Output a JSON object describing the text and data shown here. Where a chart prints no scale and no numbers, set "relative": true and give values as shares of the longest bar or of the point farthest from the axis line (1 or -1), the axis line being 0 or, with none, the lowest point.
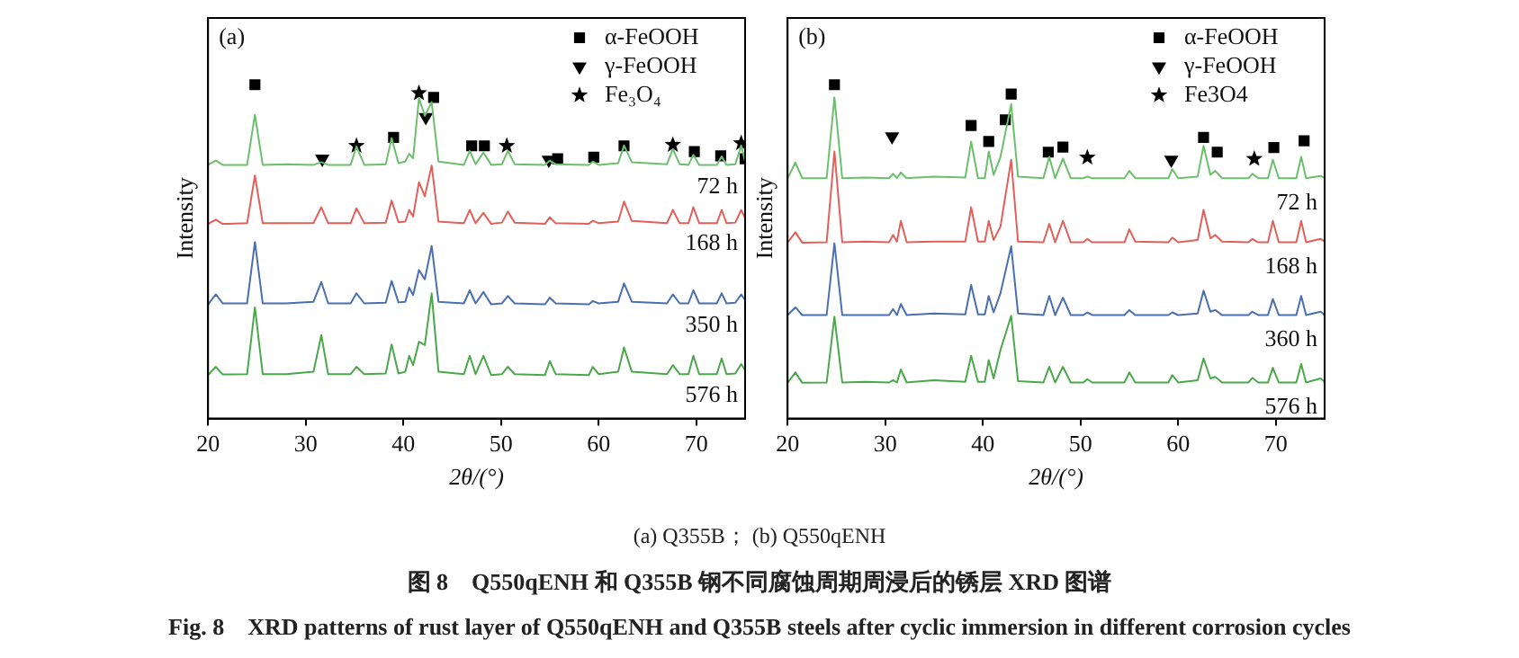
{
  "chart_data": [
    {
      "type": "line",
      "title": "(a)",
      "xlabel": "2θ/(°)",
      "ylabel": "Intensity",
      "relative": true,
      "xlim": [
        20,
        75
      ],
      "xticks": [
        20,
        30,
        40,
        50,
        60,
        70
      ],
      "tick_labels": "x",
      "grid": false,
      "legend": "top right",
      "x": [
        20,
        20.8,
        21.5,
        24,
        24.8,
        25.6,
        28,
        30.8,
        31.6,
        32.3,
        34.6,
        35.2,
        36,
        38.2,
        38.8,
        39.5,
        40.2,
        40.6,
        41.0,
        41.6,
        42.2,
        42.9,
        43.6,
        46.2,
        46.8,
        47.4,
        48.2,
        49,
        50.1,
        50.7,
        51.4,
        54.5,
        55.0,
        55.6,
        59,
        59.4,
        60,
        62,
        62.6,
        63.4,
        67,
        67.6,
        68.3,
        69.2,
        69.7,
        70.3,
        72.1,
        72.6,
        73.1,
        74,
        74.6,
        75
      ],
      "series": [
        {
          "name": "72 h",
          "color": "#6cbf6c",
          "values": [
            0.76,
            0.773,
            0.76,
            0.76,
            0.91,
            0.76,
            0.762,
            0.76,
            0.768,
            0.76,
            0.76,
            0.815,
            0.76,
            0.762,
            0.84,
            0.765,
            0.77,
            0.793,
            0.78,
            0.96,
            0.907,
            0.948,
            0.77,
            0.76,
            0.802,
            0.762,
            0.797,
            0.76,
            0.762,
            0.802,
            0.762,
            0.76,
            0.773,
            0.762,
            0.76,
            0.77,
            0.76,
            0.765,
            0.818,
            0.768,
            0.762,
            0.807,
            0.762,
            0.76,
            0.79,
            0.76,
            0.76,
            0.785,
            0.76,
            0.762,
            0.818,
            0.77
          ]
        },
        {
          "name": "168 h",
          "color": "#e0605a",
          "values": [
            0.583,
            0.596,
            0.583,
            0.585,
            0.728,
            0.585,
            0.585,
            0.586,
            0.633,
            0.585,
            0.585,
            0.63,
            0.585,
            0.587,
            0.653,
            0.588,
            0.59,
            0.625,
            0.605,
            0.708,
            0.666,
            0.758,
            0.59,
            0.585,
            0.625,
            0.585,
            0.616,
            0.583,
            0.587,
            0.62,
            0.587,
            0.583,
            0.603,
            0.585,
            0.583,
            0.593,
            0.585,
            0.59,
            0.65,
            0.592,
            0.585,
            0.625,
            0.585,
            0.585,
            0.633,
            0.585,
            0.585,
            0.625,
            0.585,
            0.587,
            0.625,
            0.6
          ]
        },
        {
          "name": "350 h",
          "color": "#4a6fb0",
          "values": [
            0.342,
            0.372,
            0.345,
            0.345,
            0.529,
            0.345,
            0.345,
            0.35,
            0.409,
            0.345,
            0.345,
            0.375,
            0.345,
            0.347,
            0.412,
            0.348,
            0.35,
            0.392,
            0.37,
            0.445,
            0.417,
            0.517,
            0.35,
            0.345,
            0.384,
            0.345,
            0.379,
            0.342,
            0.345,
            0.367,
            0.345,
            0.342,
            0.362,
            0.345,
            0.342,
            0.352,
            0.345,
            0.35,
            0.405,
            0.35,
            0.345,
            0.372,
            0.345,
            0.345,
            0.384,
            0.345,
            0.345,
            0.375,
            0.345,
            0.347,
            0.372,
            0.355
          ]
        },
        {
          "name": "576 h",
          "color": "#4aa84a",
          "values": [
            0.13,
            0.155,
            0.132,
            0.133,
            0.333,
            0.133,
            0.133,
            0.14,
            0.25,
            0.133,
            0.133,
            0.155,
            0.133,
            0.135,
            0.222,
            0.135,
            0.14,
            0.188,
            0.16,
            0.23,
            0.22,
            0.375,
            0.14,
            0.133,
            0.188,
            0.133,
            0.188,
            0.13,
            0.133,
            0.155,
            0.133,
            0.13,
            0.172,
            0.133,
            0.13,
            0.155,
            0.133,
            0.14,
            0.213,
            0.14,
            0.133,
            0.16,
            0.133,
            0.133,
            0.188,
            0.133,
            0.133,
            0.18,
            0.133,
            0.135,
            0.163,
            0.145
          ]
        },
        {
          "name": "α-FeOOH",
          "type": "scatter",
          "marker": "square",
          "color": "#000000",
          "x": [
            24.8,
            39,
            43.1,
            47,
            48.3,
            55.8,
            59.5,
            62.6,
            69.8,
            72.5,
            75
          ],
          "values": [
            1.0,
            0.842,
            0.962,
            0.817,
            0.817,
            0.778,
            0.783,
            0.817,
            0.8,
            0.787,
            0.778
          ]
        },
        {
          "name": "γ-FeOOH",
          "type": "scatter",
          "marker": "triangle",
          "color": "#000000",
          "x": [
            31.7,
            42.3,
            54.9
          ],
          "values": [
            0.778,
            0.903,
            0.775
          ]
        },
        {
          "name": "Fe₃O₄",
          "type": "scatter",
          "marker": "star",
          "color": "#000000",
          "x": [
            35.2,
            41.6,
            50.6,
            67.6,
            74.6
          ],
          "values": [
            0.817,
            0.975,
            0.817,
            0.82,
            0.825
          ]
        }
      ]
    },
    {
      "type": "line",
      "title": "(b)",
      "xlabel": "2θ/(°)",
      "ylabel": "Intensity",
      "relative": true,
      "xlim": [
        20,
        75
      ],
      "xticks": [
        20,
        30,
        40,
        50,
        60,
        70
      ],
      "tick_labels": "x",
      "grid": false,
      "legend": "top right",
      "x": [
        20,
        20.8,
        21.5,
        24,
        24.8,
        25.6,
        28,
        30.4,
        30.8,
        31.2,
        31.6,
        32.2,
        35,
        38.2,
        38.8,
        39.5,
        40.2,
        40.6,
        41.1,
        41.8,
        42.9,
        43.6,
        46.2,
        46.8,
        47.4,
        48.2,
        49,
        50.3,
        50.7,
        51.2,
        54.5,
        55,
        55.6,
        59,
        59.4,
        60,
        62,
        62.6,
        63.3,
        63.8,
        64.5,
        67.2,
        67.6,
        68.2,
        69.2,
        69.7,
        70.3,
        72.1,
        72.6,
        73.1,
        74.6,
        75
      ],
      "series": [
        {
          "name": "72 h",
          "color": "#6cbf6c",
          "values": [
            0.72,
            0.767,
            0.72,
            0.72,
            0.962,
            0.72,
            0.722,
            0.72,
            0.733,
            0.72,
            0.737,
            0.72,
            0.725,
            0.722,
            0.829,
            0.72,
            0.72,
            0.8,
            0.73,
            0.783,
            0.942,
            0.725,
            0.72,
            0.784,
            0.72,
            0.779,
            0.72,
            0.72,
            0.725,
            0.72,
            0.72,
            0.742,
            0.72,
            0.72,
            0.747,
            0.72,
            0.725,
            0.817,
            0.73,
            0.742,
            0.72,
            0.72,
            0.733,
            0.72,
            0.72,
            0.775,
            0.72,
            0.72,
            0.784,
            0.72,
            0.727,
            0.72
          ]
        },
        {
          "name": "168 h",
          "color": "#e0605a",
          "values": [
            0.527,
            0.558,
            0.527,
            0.528,
            0.8,
            0.528,
            0.53,
            0.528,
            0.55,
            0.53,
            0.592,
            0.528,
            0.53,
            0.53,
            0.633,
            0.53,
            0.53,
            0.592,
            0.535,
            0.575,
            0.775,
            0.53,
            0.528,
            0.583,
            0.528,
            0.592,
            0.528,
            0.528,
            0.538,
            0.528,
            0.528,
            0.567,
            0.53,
            0.528,
            0.542,
            0.528,
            0.535,
            0.625,
            0.54,
            0.55,
            0.53,
            0.528,
            0.538,
            0.528,
            0.528,
            0.592,
            0.528,
            0.528,
            0.592,
            0.528,
            0.538,
            0.53
          ]
        },
        {
          "name": "360 h",
          "color": "#4a6fb0",
          "values": [
            0.31,
            0.333,
            0.31,
            0.31,
            0.525,
            0.31,
            0.31,
            0.31,
            0.328,
            0.31,
            0.343,
            0.31,
            0.315,
            0.312,
            0.4,
            0.312,
            0.312,
            0.367,
            0.318,
            0.375,
            0.516,
            0.315,
            0.31,
            0.367,
            0.31,
            0.362,
            0.31,
            0.31,
            0.318,
            0.31,
            0.31,
            0.325,
            0.31,
            0.31,
            0.318,
            0.31,
            0.315,
            0.383,
            0.32,
            0.325,
            0.31,
            0.31,
            0.32,
            0.31,
            0.31,
            0.358,
            0.31,
            0.31,
            0.367,
            0.31,
            0.32,
            0.31
          ]
        },
        {
          "name": "576 h",
          "color": "#4aa84a",
          "values": [
            0.107,
            0.138,
            0.107,
            0.108,
            0.305,
            0.108,
            0.11,
            0.108,
            0.115,
            0.108,
            0.147,
            0.108,
            0.115,
            0.11,
            0.188,
            0.11,
            0.11,
            0.175,
            0.12,
            0.205,
            0.308,
            0.112,
            0.108,
            0.155,
            0.108,
            0.155,
            0.108,
            0.108,
            0.118,
            0.108,
            0.108,
            0.138,
            0.108,
            0.108,
            0.13,
            0.108,
            0.115,
            0.18,
            0.12,
            0.125,
            0.108,
            0.108,
            0.122,
            0.108,
            0.108,
            0.152,
            0.108,
            0.108,
            0.163,
            0.108,
            0.12,
            0.11
          ]
        },
        {
          "name": "α-FeOOH",
          "type": "scatter",
          "marker": "square",
          "color": "#000000",
          "x": [
            24.8,
            38.8,
            40.6,
            42.3,
            42.9,
            46.7,
            48.2,
            62.6,
            64,
            69.8,
            72.9
          ],
          "values": [
            1.0,
            0.878,
            0.83,
            0.895,
            0.972,
            0.798,
            0.813,
            0.842,
            0.798,
            0.812,
            0.832
          ]
        },
        {
          "name": "γ-FeOOH",
          "type": "scatter",
          "marker": "triangle",
          "color": "#000000",
          "x": [
            30.7,
            59.3
          ],
          "values": [
            0.845,
            0.775
          ]
        },
        {
          "name": "Fe3O4",
          "type": "scatter",
          "marker": "star",
          "color": "#000000",
          "x": [
            50.7,
            67.8
          ],
          "values": [
            0.782,
            0.778
          ]
        }
      ],
      "annotations": [
        "(a) Q355B； (b) Q550qENH",
        "图 8　Q550qENH 和 Q355B 钢不同腐蚀周期周浸后的锈层 XRD 图谱",
        "Fig. 8　XRD patterns of rust layer of Q550qENH and Q355B steels after cyclic immersion in different corrosion cycles"
      ]
    }
  ]
}
